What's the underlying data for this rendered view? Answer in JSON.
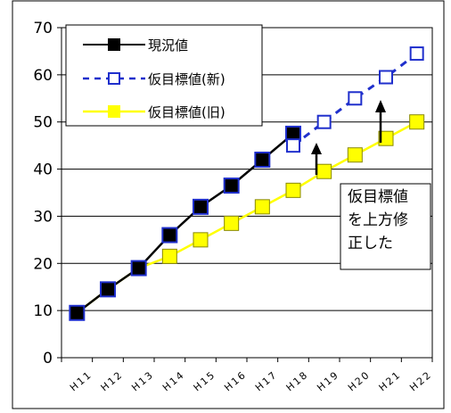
{
  "chart_data": {
    "type": "line",
    "title": "",
    "xlabel": "",
    "ylabel": "",
    "categories": [
      "H11",
      "H12",
      "H13",
      "H14",
      "H15",
      "H16",
      "H17",
      "H18",
      "H19",
      "H20",
      "H21",
      "H22"
    ],
    "ylim": [
      0,
      70
    ],
    "yticks": [
      0,
      10,
      20,
      30,
      40,
      50,
      60,
      70
    ],
    "grid": true,
    "legend_position": "top-left",
    "series": [
      {
        "name": "現況値",
        "color": "#000000",
        "line_style": "solid",
        "marker": "filled-square",
        "values": [
          9.5,
          14.5,
          19,
          26,
          32,
          36.5,
          42,
          47.5,
          null,
          null,
          null,
          null
        ]
      },
      {
        "name": "仮目標値(新)",
        "color": "#1f2fcc",
        "line_style": "dashed",
        "marker": "open-square",
        "values": [
          null,
          null,
          null,
          null,
          null,
          null,
          null,
          45,
          50,
          55,
          59.5,
          64.5
        ]
      },
      {
        "name": "仮目標値(旧)",
        "color": "#ffff00",
        "line_style": "solid",
        "marker": "filled-square",
        "values": [
          9.5,
          14.5,
          19,
          21.5,
          25,
          28.5,
          32,
          35.5,
          39.5,
          43,
          46.5,
          50
        ]
      }
    ],
    "annotations": [
      {
        "lines": [
          "仮目標値",
          "を上方修",
          "正した"
        ]
      }
    ]
  }
}
